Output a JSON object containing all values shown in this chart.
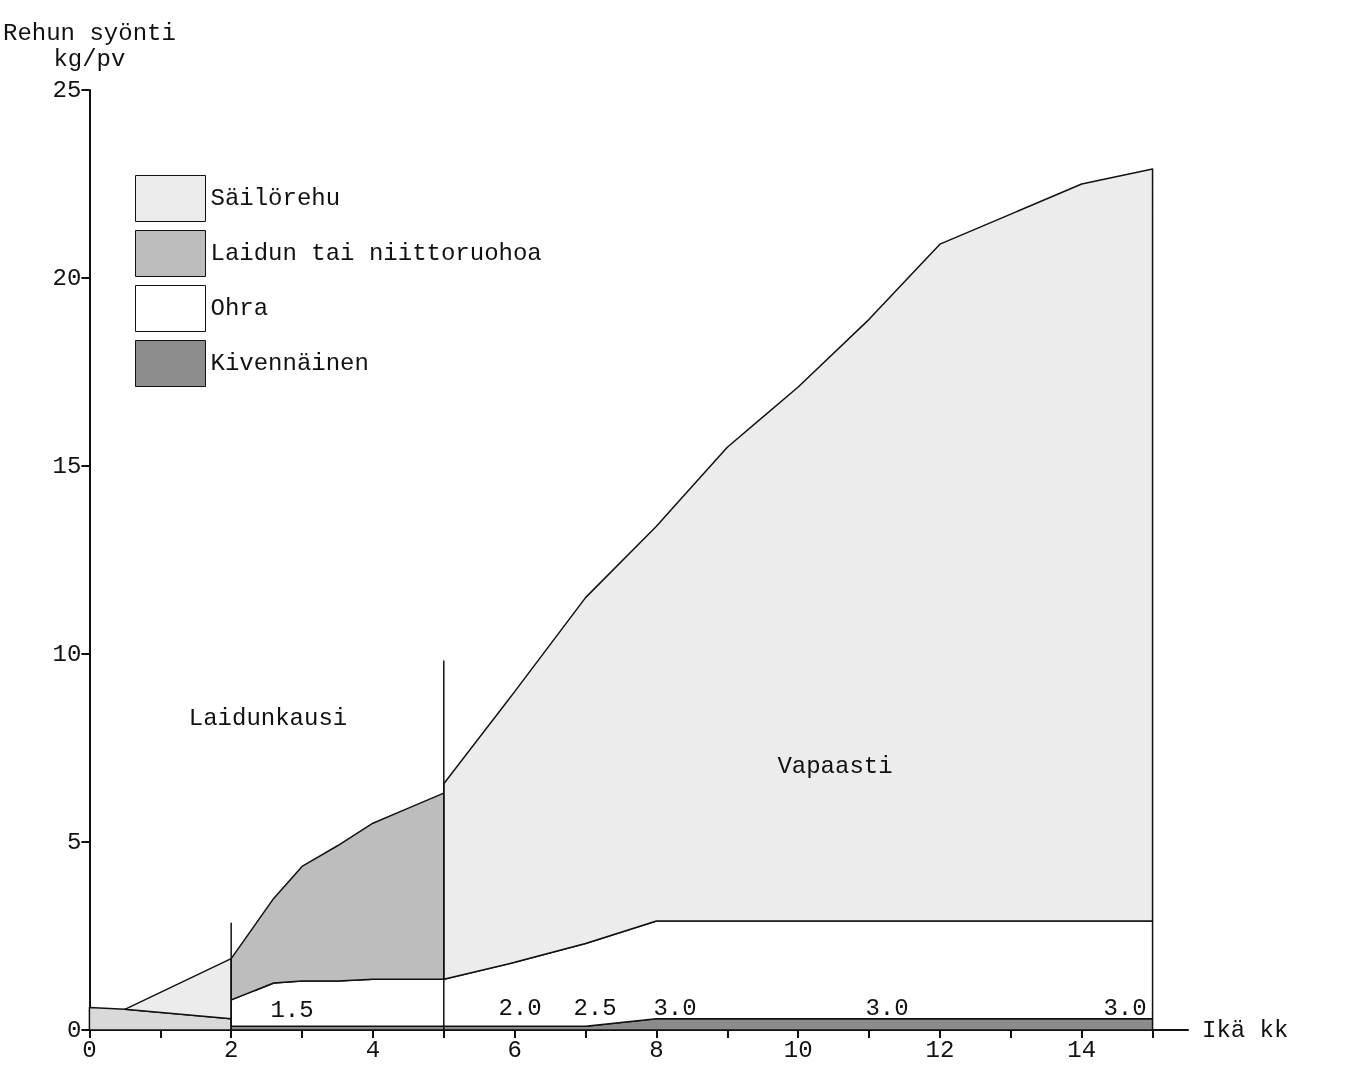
{
  "chart_data": {
    "type": "area",
    "stacked": true,
    "xlabel": "Ikä kk",
    "ylabel": "Rehun syönti\nkg/pv",
    "x": [
      0,
      0.5,
      2,
      2,
      2.6,
      3,
      3.5,
      4,
      4.5,
      5,
      5,
      6,
      7,
      8,
      9,
      10,
      11,
      12,
      13,
      14,
      15
    ],
    "series": [
      {
        "name": "Kivennäinen",
        "color": "#8c8c8c",
        "values": [
          null,
          null,
          null,
          0.1,
          0.1,
          0.1,
          0.1,
          0.1,
          0.1,
          0.1,
          0.1,
          0.1,
          0.1,
          0.3,
          0.3,
          0.3,
          0.3,
          0.3,
          0.3,
          0.3,
          0.3
        ]
      },
      {
        "color": "#d9d9d9",
        "values": [
          0.6,
          0.55,
          0.3,
          null,
          null,
          null,
          null,
          null,
          null,
          null,
          null,
          null,
          null,
          null,
          null,
          null,
          null,
          null,
          null,
          null,
          null
        ]
      },
      {
        "name": "Ohra",
        "color": "#ffffff",
        "values": [
          null,
          null,
          null,
          0.7,
          1.15,
          1.2,
          1.2,
          1.25,
          1.25,
          1.25,
          1.25,
          1.7,
          2.2,
          2.6,
          2.6,
          2.6,
          2.6,
          2.6,
          2.6,
          2.6,
          2.6
        ]
      },
      {
        "name": "Laidun tai niittoruohoa",
        "color": "#bdbdbd",
        "values": [
          null,
          null,
          null,
          1.1,
          2.25,
          3.05,
          3.6,
          4.15,
          4.55,
          4.95,
          null,
          null,
          null,
          null,
          null,
          null,
          null,
          null,
          null,
          null,
          null
        ]
      },
      {
        "name": "Säilörehu",
        "color": "#ececec",
        "values": [
          null,
          0,
          1.6,
          null,
          null,
          null,
          null,
          null,
          null,
          null,
          5.2,
          7.2,
          9.2,
          10.5,
          12.6,
          14.2,
          16.0,
          18.0,
          18.8,
          19.6,
          20.0
        ]
      }
    ],
    "xlim": [
      0,
      15.5
    ],
    "xticks": [
      0,
      {
        "value": 1,
        "label": null
      },
      2,
      {
        "value": 3,
        "label": null
      },
      4,
      {
        "value": 5,
        "label": null
      },
      6,
      {
        "value": 7,
        "label": null
      },
      8,
      {
        "value": 9,
        "label": null
      },
      10,
      {
        "value": 11,
        "label": null
      },
      12,
      {
        "value": 13,
        "label": null
      },
      14,
      {
        "value": 15,
        "label": null
      }
    ],
    "ylim": [
      0,
      25
    ],
    "yticks": [
      0,
      5,
      10,
      15,
      20,
      25
    ],
    "grid": false,
    "legend": "top left",
    "ref_lines": [
      {
        "axis": "x",
        "value": 2
      },
      {
        "axis": "x",
        "value": 5
      }
    ],
    "annotations": [
      "Laidunkausi",
      "Vapaasti",
      "1.5",
      "2.0",
      "2.5",
      "3.0",
      "3.0",
      "3.0"
    ]
  }
}
